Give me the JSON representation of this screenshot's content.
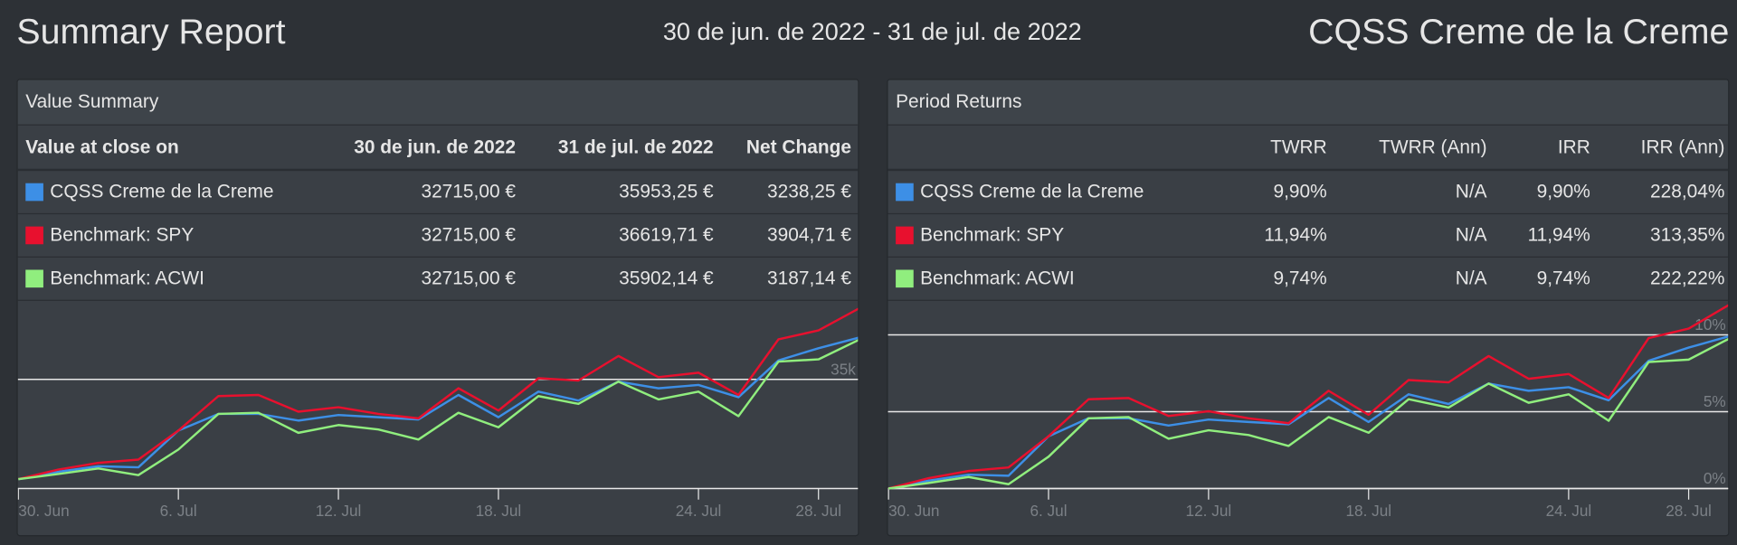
{
  "header": {
    "title": "Summary Report",
    "date_range": "30 de jun. de 2022 - 31 de jul. de 2022",
    "portfolio": "CQSS Creme de la Creme"
  },
  "value_summary": {
    "title": "Value Summary",
    "columns": [
      "Value at close on",
      "30 de jun. de 2022",
      "31 de jul. de 2022",
      "Net Change"
    ],
    "rows": [
      [
        "32715,00 €",
        "35953,25 €",
        "3238,25 €"
      ],
      [
        "32715,00 €",
        "36619,71 €",
        "3904,71 €"
      ],
      [
        "32715,00 €",
        "35902,14 €",
        "3187,14 €"
      ]
    ]
  },
  "period_returns": {
    "title": "Period Returns",
    "columns": [
      "TWRR",
      "TWRR (Ann)",
      "IRR",
      "IRR (Ann)"
    ],
    "rows": [
      [
        "9,90%",
        "N/A",
        "9,90%",
        "228,04%"
      ],
      [
        "11,94%",
        "N/A",
        "11,94%",
        "313,35%"
      ],
      [
        "9,74%",
        "N/A",
        "9,74%",
        "222,22%"
      ]
    ]
  },
  "chart_data": [
    {
      "type": "line",
      "categories": [
        "30. Jun",
        null,
        null,
        null,
        "6. Jul",
        null,
        null,
        null,
        "12. Jul",
        null,
        null,
        null,
        "18. Jul",
        null,
        null,
        null,
        null,
        "24. Jul",
        null,
        null,
        "28. Jul",
        null
      ],
      "series": [
        {
          "name": "CQSS Creme de la Creme",
          "color": "#3d8fe6",
          "values": [
            32715,
            32883,
            33010,
            32985,
            33827,
            34209,
            34209,
            34056,
            34184,
            34133,
            34082,
            34643,
            34133,
            34719,
            34515,
            34949,
            34796,
            34872,
            34592,
            35434,
            35714,
            35953.25
          ]
        },
        {
          "name": "Benchmark: SPY",
          "color": "#e8102e",
          "values": [
            32715,
            32934,
            33087,
            33163,
            33827,
            34617,
            34643,
            34260,
            34362,
            34209,
            34107,
            34796,
            34286,
            35026,
            34974,
            35536,
            35051,
            35153,
            34643,
            35918,
            36122,
            36619.71
          ]
        },
        {
          "name": "Benchmark: ACWI",
          "color": "#90ee7e",
          "values": [
            32715,
            32832,
            32959,
            32806,
            33393,
            34209,
            34235,
            33776,
            33954,
            33852,
            33622,
            34235,
            33903,
            34617,
            34439,
            34949,
            34541,
            34719,
            34158,
            35408,
            35459,
            35902.14
          ]
        }
      ],
      "ylim": [
        32500,
        36900
      ],
      "yticks": [
        {
          "value": 35000,
          "label": "35k"
        }
      ],
      "grid": true
    },
    {
      "type": "line",
      "categories": [
        "30. Jun",
        null,
        null,
        null,
        "6. Jul",
        null,
        null,
        null,
        "12. Jul",
        null,
        null,
        null,
        "18. Jul",
        null,
        null,
        null,
        null,
        "24. Jul",
        null,
        null,
        "28. Jul",
        null
      ],
      "series": [
        {
          "name": "CQSS Creme de la Creme",
          "color": "#3d8fe6",
          "values": [
            0,
            0.51,
            0.9,
            0.83,
            3.4,
            4.57,
            4.57,
            4.1,
            4.49,
            4.33,
            4.18,
            5.89,
            4.33,
            6.13,
            5.5,
            6.83,
            6.36,
            6.59,
            5.74,
            8.31,
            9.17,
            9.9
          ]
        },
        {
          "name": "Benchmark: SPY",
          "color": "#e8102e",
          "values": [
            0,
            0.67,
            1.14,
            1.37,
            3.4,
            5.81,
            5.89,
            4.72,
            5.03,
            4.57,
            4.25,
            6.36,
            4.8,
            7.06,
            6.91,
            8.62,
            7.14,
            7.45,
            5.89,
            9.79,
            10.41,
            11.94
          ]
        },
        {
          "name": "Benchmark: ACWI",
          "color": "#90ee7e",
          "values": [
            0,
            0.36,
            0.75,
            0.28,
            2.07,
            4.57,
            4.65,
            3.24,
            3.79,
            3.48,
            2.77,
            4.65,
            3.63,
            5.81,
            5.27,
            6.83,
            5.58,
            6.13,
            4.41,
            8.23,
            8.39,
            9.74
          ]
        }
      ],
      "ylim": [
        0,
        12.5
      ],
      "yticks": [
        {
          "value": 0,
          "label": "0%"
        },
        {
          "value": 5,
          "label": "5%"
        },
        {
          "value": 10,
          "label": "10%"
        }
      ],
      "grid": true
    }
  ]
}
